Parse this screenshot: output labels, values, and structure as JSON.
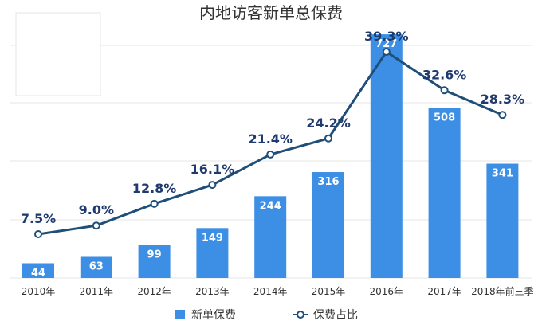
{
  "colors": {
    "bar": "#3c8fe5",
    "line": "#1f4e79",
    "line_label": "#1f3a6e",
    "marker_fill": "#ffffff"
  },
  "chart_data": {
    "type": "bar",
    "title": "内地访客新单总保费",
    "categories": [
      "2010年",
      "2011年",
      "2012年",
      "2013年",
      "2014年",
      "2015年",
      "2016年",
      "2017年",
      "2018年前三季"
    ],
    "series": [
      {
        "name": "新单保费",
        "type": "bar",
        "values": [
          44,
          63,
          99,
          149,
          244,
          316,
          727,
          508,
          341
        ],
        "labels": [
          "44",
          "63",
          "99",
          "149",
          "244",
          "316",
          "727",
          "508",
          "341"
        ]
      },
      {
        "name": "保费占比",
        "type": "line",
        "values": [
          7.5,
          9.0,
          12.8,
          16.1,
          21.4,
          24.2,
          39.3,
          32.6,
          28.3
        ],
        "labels": [
          "7.5%",
          "9.0%",
          "12.8%",
          "16.1%",
          "21.4%",
          "24.2%",
          "39.3%",
          "32.6%",
          "28.3%"
        ]
      }
    ],
    "bar_axis": {
      "ylim": [
        0,
        800
      ]
    },
    "line_axis": {
      "ylim": [
        0,
        44
      ]
    },
    "grid": true,
    "legend": "bottom"
  }
}
